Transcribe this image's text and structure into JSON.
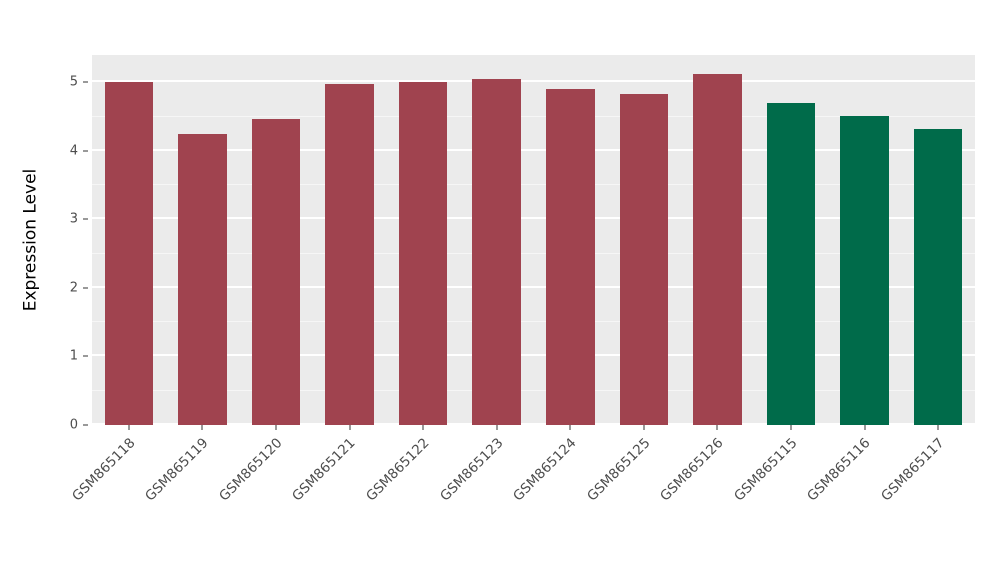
{
  "chart_data": {
    "type": "bar",
    "title": "",
    "xlabel": "",
    "ylabel": "Expression Level",
    "ylim": [
      0,
      5.4
    ],
    "yticks": [
      0,
      1,
      2,
      3,
      4,
      5
    ],
    "yticks_minor": [
      0.5,
      1.5,
      2.5,
      3.5,
      4.5
    ],
    "grid": "on",
    "legend": "none",
    "panel_background": "#EBEBEB",
    "categories": [
      "GSM865118",
      "GSM865119",
      "GSM865120",
      "GSM865121",
      "GSM865122",
      "GSM865123",
      "GSM865124",
      "GSM865125",
      "GSM865126",
      "GSM865115",
      "GSM865116",
      "GSM865117"
    ],
    "values": [
      5.0,
      4.25,
      4.46,
      4.97,
      5.0,
      5.05,
      4.9,
      4.83,
      5.12,
      4.7,
      4.51,
      4.32
    ],
    "bar_colors": [
      "#A0434F",
      "#A0434F",
      "#A0434F",
      "#A0434F",
      "#A0434F",
      "#A0434F",
      "#A0434F",
      "#A0434F",
      "#A0434F",
      "#006B4A",
      "#006B4A",
      "#006B4A"
    ],
    "groups": [
      "group1",
      "group1",
      "group1",
      "group1",
      "group1",
      "group1",
      "group1",
      "group1",
      "group1",
      "group2",
      "group2",
      "group2"
    ],
    "group_colors": {
      "group1": "#A0434F",
      "group2": "#006B4A"
    },
    "bar_width_fraction": 0.66
  }
}
